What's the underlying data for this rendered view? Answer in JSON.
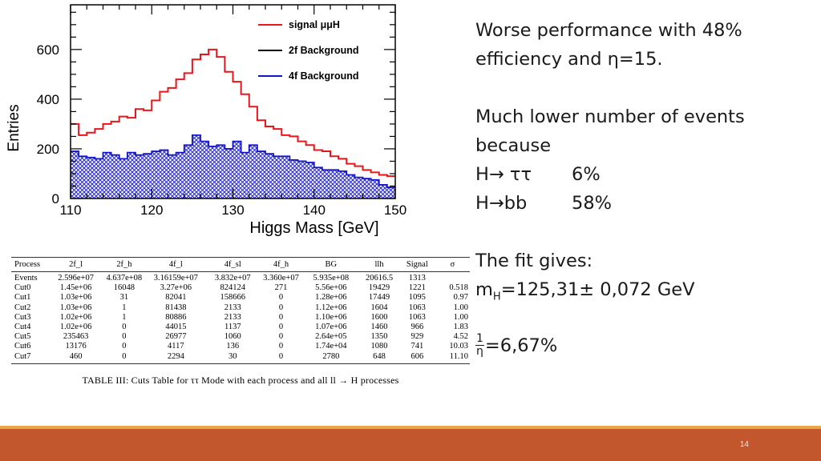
{
  "chart_data": {
    "type": "histogram",
    "xlabel": "Higgs Mass [GeV]",
    "ylabel": "Entries",
    "xlim": [
      110,
      150
    ],
    "ylim": [
      0,
      780
    ],
    "xticks": [
      "110",
      "120",
      "130",
      "140",
      "150"
    ],
    "yticks": [
      "0",
      "200",
      "400",
      "600"
    ],
    "bin_width": 1,
    "legend_position": "top-right",
    "series": [
      {
        "name": "signal μμH",
        "color": "#e8161b",
        "style": "step",
        "values": [
          300,
          255,
          265,
          280,
          300,
          310,
          330,
          325,
          360,
          355,
          395,
          430,
          445,
          480,
          505,
          560,
          580,
          600,
          570,
          510,
          470,
          420,
          370,
          315,
          290,
          280,
          255,
          250,
          230,
          215,
          195,
          190,
          170,
          160,
          140,
          130,
          115,
          105,
          95,
          90
        ]
      },
      {
        "name": "2f Background",
        "color": "#000000",
        "style": "step",
        "values": []
      },
      {
        "name": "4f Background",
        "color": "#1414c8",
        "style": "hatched",
        "values": [
          190,
          170,
          165,
          160,
          185,
          175,
          160,
          185,
          175,
          180,
          190,
          195,
          175,
          185,
          215,
          255,
          230,
          210,
          215,
          200,
          230,
          185,
          215,
          190,
          180,
          170,
          170,
          155,
          150,
          145,
          125,
          115,
          115,
          110,
          95,
          85,
          80,
          75,
          55,
          45
        ]
      }
    ]
  },
  "table": {
    "headers": [
      "Process",
      "2f_l",
      "2f_h",
      "4f_l",
      "4f_sl",
      "4f_h",
      "BG",
      "llh",
      "Signal",
      "σ"
    ],
    "rows": [
      [
        "Events",
        "2.596e+07",
        "4.637e+08",
        "3.16159e+07",
        "3.832e+07",
        "3.360e+07",
        "5.935e+08",
        "20616.5",
        "1313",
        ""
      ],
      [
        "Cut0",
        "1.45e+06",
        "16048",
        "3.27e+06",
        "824124",
        "271",
        "5.56e+06",
        "19429",
        "1221",
        "0.518"
      ],
      [
        "Cut1",
        "1.03e+06",
        "31",
        "82041",
        "158666",
        "0",
        "1.28e+06",
        "17449",
        "1095",
        "0.97"
      ],
      [
        "Cut2",
        "1.03e+06",
        "1",
        "81438",
        "2133",
        "0",
        "1.12e+06",
        "1604",
        "1063",
        "1.00"
      ],
      [
        "Cut3",
        "1.02e+06",
        "1",
        "80886",
        "2133",
        "0",
        "1.10e+06",
        "1600",
        "1063",
        "1.00"
      ],
      [
        "Cut4",
        "1.02e+06",
        "0",
        "44015",
        "1137",
        "0",
        "1.07e+06",
        "1460",
        "966",
        "1.83"
      ],
      [
        "Cut5",
        "235463",
        "0",
        "26977",
        "1060",
        "0",
        "2.64e+05",
        "1350",
        "929",
        "4.52"
      ],
      [
        "Cut6",
        "13176",
        "0",
        "4117",
        "136",
        "0",
        "1.74e+04",
        "1080",
        "741",
        "10.03"
      ],
      [
        "Cut7",
        "460",
        "0",
        "2294",
        "30",
        "0",
        "2780",
        "648",
        "606",
        "11.10"
      ]
    ],
    "caption": "TABLE III: Cuts Table for ττ Mode with each process and all ll → H processes"
  },
  "notes": {
    "line1": "Worse performance with 48%",
    "line2": "efficiency and η=15.",
    "line3": "Much lower number of events",
    "line4": "because",
    "decay1_label": "H→ ττ",
    "decay1_value": "6%",
    "decay2_label": "H→bb",
    "decay2_value": "58%",
    "fit_intro": "The fit gives:",
    "mass_symbol": "m",
    "mass_sub": "H",
    "mass_value": "=125,31± 0,072 GeV",
    "frac_num": "1",
    "frac_den": "η",
    "frac_value": "=6,67%"
  },
  "footer": {
    "page_number": "14",
    "band_color": "#c2572d",
    "line_color": "#e8a64a"
  }
}
